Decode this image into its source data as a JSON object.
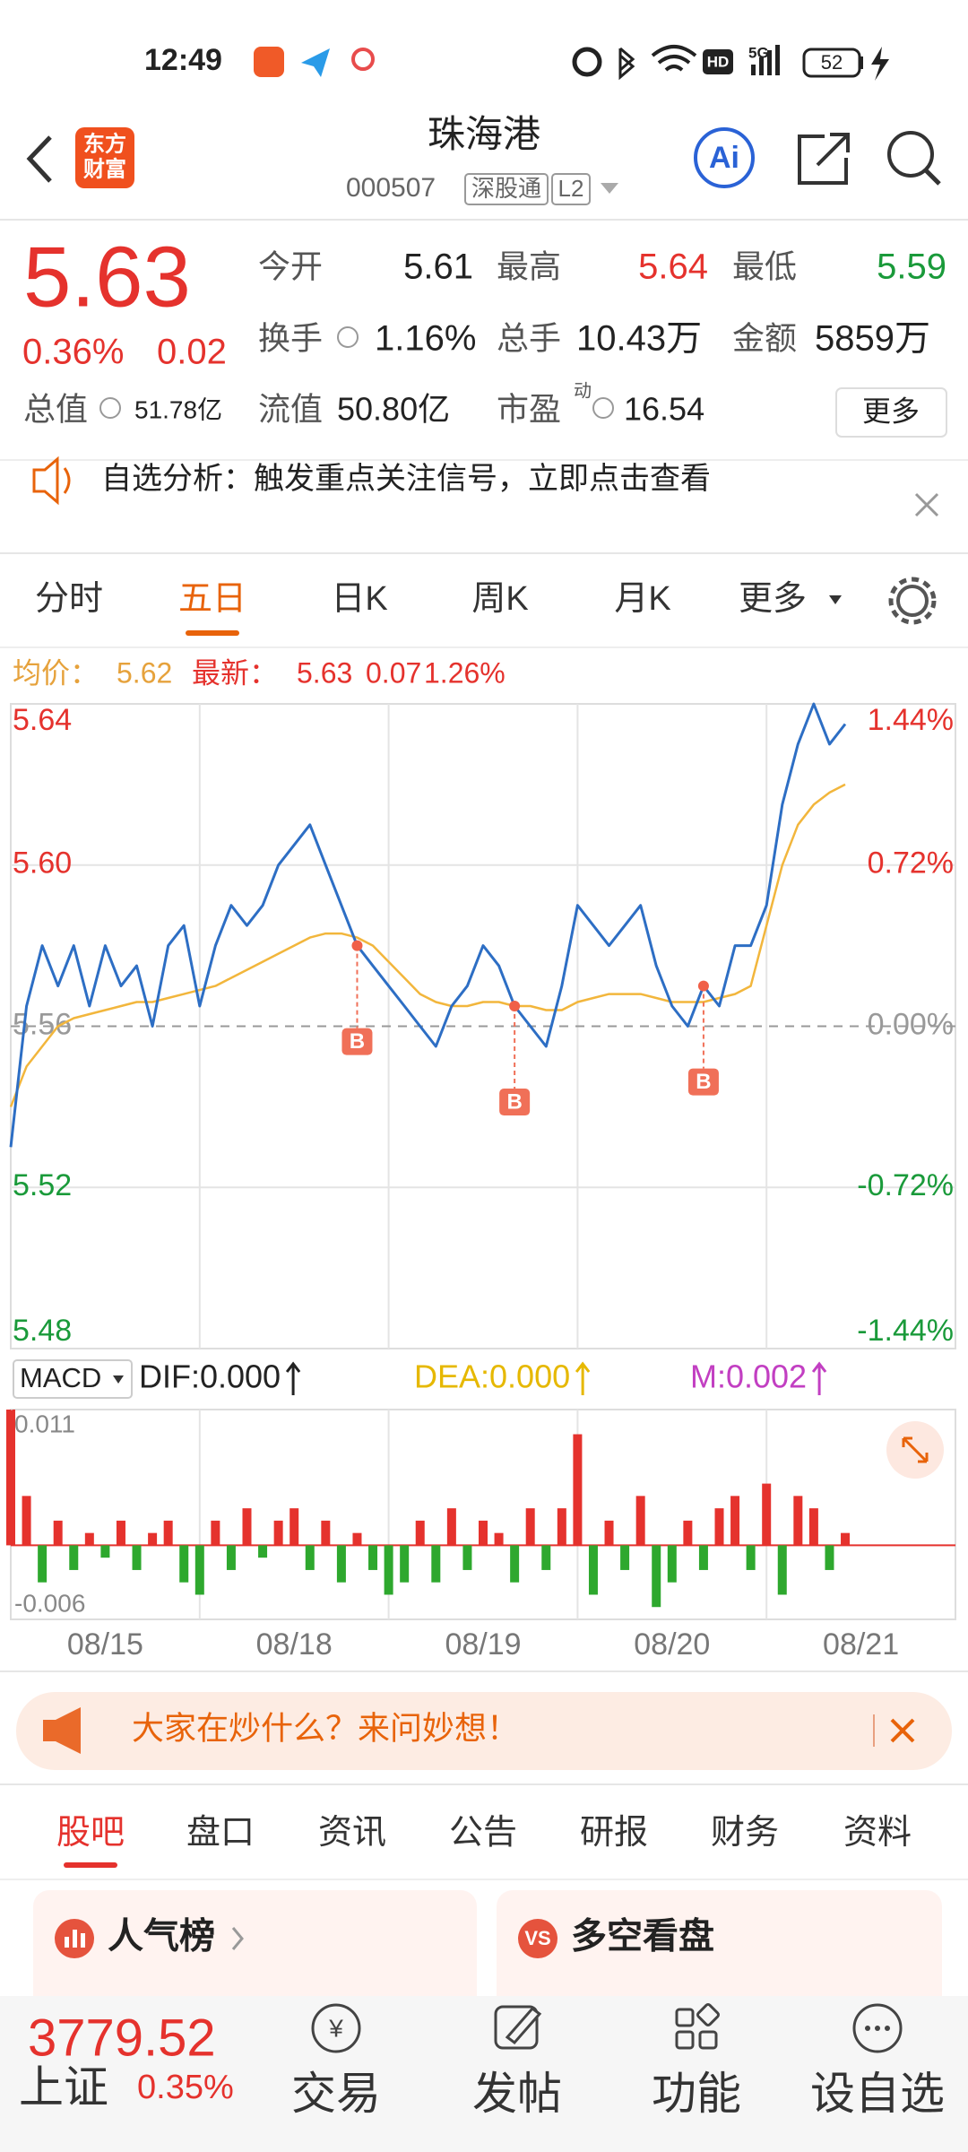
{
  "status_bar": {
    "time": "12:49",
    "network": [
      "HD",
      "5G"
    ],
    "battery": "52"
  },
  "header": {
    "logo": [
      "东方",
      "财富"
    ],
    "title": "珠海港",
    "code": "000507",
    "tags": [
      "深股通",
      "L2"
    ],
    "ai_label": "Ai"
  },
  "quote": {
    "price": "5.63",
    "change_pct": "0.36%",
    "change": "0.02",
    "stats": [
      {
        "label": "今开",
        "value": "5.61"
      },
      {
        "label": "最高",
        "value": "5.64",
        "color": "#e5322d"
      },
      {
        "label": "最低",
        "value": "5.59",
        "color": "#1a9a3a"
      },
      {
        "label": "换手",
        "value": "1.16%"
      },
      {
        "label": "总手",
        "value": "10.43万"
      },
      {
        "label": "金额",
        "value": "5859万"
      },
      {
        "label": "总值",
        "value": "51.78亿"
      },
      {
        "label": "流值",
        "value": "50.80亿"
      },
      {
        "label": "市盈",
        "sup": "动",
        "value": "16.54"
      }
    ],
    "more": "更多"
  },
  "notice": "自选分析：触发重点关注信号，立即点击查看",
  "tabs": [
    "分时",
    "五日",
    "日K",
    "周K",
    "月K",
    "更多"
  ],
  "active_tab": 1,
  "legend": {
    "avg_label": "均价：",
    "avg": "5.62",
    "latest_label": "最新：",
    "latest": "5.63",
    "change": "0.07",
    "pct": "1.26%"
  },
  "chart_data": [
    {
      "type": "line",
      "x": [
        0,
        1,
        2,
        3,
        4,
        5,
        6,
        7,
        8,
        9,
        10,
        11,
        12,
        13,
        14,
        15,
        16,
        17,
        18,
        19,
        20,
        21,
        22,
        23,
        24,
        25,
        26,
        27,
        28,
        29,
        30,
        31,
        32,
        33,
        34,
        35,
        36,
        37,
        38,
        39,
        40,
        41,
        42,
        43,
        44,
        45,
        46,
        47,
        48,
        49,
        50,
        51,
        52,
        53
      ],
      "xlim": [
        0,
        60
      ],
      "xticks": [
        {
          "value": 6,
          "label": "08/15"
        },
        {
          "value": 18,
          "label": "08/18"
        },
        {
          "value": 30,
          "label": "08/19"
        },
        {
          "value": 42,
          "label": "08/20"
        },
        {
          "value": 54,
          "label": "08/21"
        }
      ],
      "series": [
        {
          "name": "最新",
          "color": "#2d6ec4",
          "values": [
            5.53,
            5.565,
            5.58,
            5.57,
            5.58,
            5.565,
            5.58,
            5.57,
            5.575,
            5.56,
            5.58,
            5.585,
            5.565,
            5.58,
            5.59,
            5.585,
            5.59,
            5.6,
            5.605,
            5.61,
            5.6,
            5.59,
            5.58,
            5.575,
            5.57,
            5.565,
            5.56,
            5.555,
            5.565,
            5.57,
            5.58,
            5.575,
            5.565,
            5.56,
            5.555,
            5.57,
            5.59,
            5.585,
            5.58,
            5.585,
            5.59,
            5.575,
            5.565,
            5.56,
            5.57,
            5.565,
            5.58,
            5.58,
            5.59,
            5.615,
            5.63,
            5.64,
            5.63,
            5.635
          ]
        },
        {
          "name": "均价",
          "color": "#f2b63c",
          "values": [
            5.54,
            5.55,
            5.555,
            5.56,
            5.562,
            5.563,
            5.564,
            5.565,
            5.566,
            5.566,
            5.567,
            5.568,
            5.569,
            5.57,
            5.572,
            5.574,
            5.576,
            5.578,
            5.58,
            5.582,
            5.583,
            5.583,
            5.582,
            5.58,
            5.576,
            5.572,
            5.568,
            5.566,
            5.565,
            5.565,
            5.566,
            5.566,
            5.565,
            5.565,
            5.564,
            5.564,
            5.566,
            5.567,
            5.568,
            5.568,
            5.568,
            5.567,
            5.566,
            5.566,
            5.566,
            5.567,
            5.568,
            5.57,
            5.585,
            5.6,
            5.61,
            5.615,
            5.618,
            5.62
          ]
        }
      ],
      "ylim": [
        5.48,
        5.64
      ],
      "yticks": [
        5.64,
        {
          "value": 5.6,
          "label": "5.60"
        },
        5.56,
        5.52,
        5.48
      ],
      "y2lim": [
        -1.44,
        1.44
      ],
      "y2ticks": [
        {
          "value": 1.44,
          "label": "1.44%"
        },
        {
          "value": 0.72,
          "label": "0.72%"
        },
        {
          "value": 0,
          "label": "0.00%"
        },
        {
          "value": -0.72,
          "label": "-0.72%"
        },
        {
          "value": -1.44,
          "label": "-1.44%"
        }
      ],
      "grid": true,
      "markers": [
        {
          "x": 22,
          "y": 5.58,
          "label": "B"
        },
        {
          "x": 32,
          "y": 5.565,
          "label": "B"
        },
        {
          "x": 44,
          "y": 5.57,
          "label": "B"
        }
      ]
    },
    {
      "type": "bar",
      "title": "MACD",
      "indicators": [
        {
          "label": "DIF:0.000",
          "color": "#222222"
        },
        {
          "label": "DEA:0.000",
          "color": "#e6b800"
        },
        {
          "label": "M:0.002",
          "color": "#c23fc2"
        }
      ],
      "x": [
        0,
        1,
        2,
        3,
        4,
        5,
        6,
        7,
        8,
        9,
        10,
        11,
        12,
        13,
        14,
        15,
        16,
        17,
        18,
        19,
        20,
        21,
        22,
        23,
        24,
        25,
        26,
        27,
        28,
        29,
        30,
        31,
        32,
        33,
        34,
        35,
        36,
        37,
        38,
        39,
        40,
        41,
        42,
        43,
        44,
        45,
        46,
        47,
        48,
        49,
        50,
        51,
        52,
        53
      ],
      "xlim": [
        0,
        60
      ],
      "values": [
        0.011,
        0.004,
        -0.003,
        0.002,
        -0.002,
        0.001,
        -0.001,
        0.002,
        -0.002,
        0.001,
        0.002,
        -0.003,
        -0.004,
        0.002,
        -0.002,
        0.003,
        -0.001,
        0.002,
        0.003,
        -0.002,
        0.002,
        -0.003,
        0.001,
        -0.002,
        -0.004,
        -0.003,
        0.002,
        -0.003,
        0.003,
        -0.002,
        0.002,
        0.001,
        -0.003,
        0.003,
        -0.002,
        0.003,
        0.009,
        -0.004,
        0.002,
        -0.002,
        0.004,
        -0.005,
        -0.003,
        0.002,
        -0.002,
        0.003,
        0.004,
        -0.002,
        0.005,
        -0.004,
        0.004,
        0.003,
        -0.002,
        0.001
      ],
      "colors": {
        "up": "#e5322d",
        "down": "#2ea82e"
      },
      "ylim": [
        -0.006,
        0.011
      ],
      "yticks": [
        0.011,
        -0.006
      ]
    }
  ],
  "banner": "大家在炒什么？来问妙想！",
  "sub_tabs": [
    "股吧",
    "盘口",
    "资讯",
    "公告",
    "研报",
    "财务",
    "资料"
  ],
  "cards": [
    {
      "icon": "",
      "title": "人气榜"
    },
    {
      "icon": "VS",
      "title": "多空看盘"
    }
  ],
  "index": {
    "value": "3779.52",
    "name": "上证",
    "pct": "0.35%"
  },
  "nav": [
    {
      "icon": "¥",
      "label": "交易"
    },
    {
      "icon": "",
      "label": "发帖"
    },
    {
      "icon": "",
      "label": "功能"
    },
    {
      "icon": "",
      "label": "设自选"
    }
  ]
}
